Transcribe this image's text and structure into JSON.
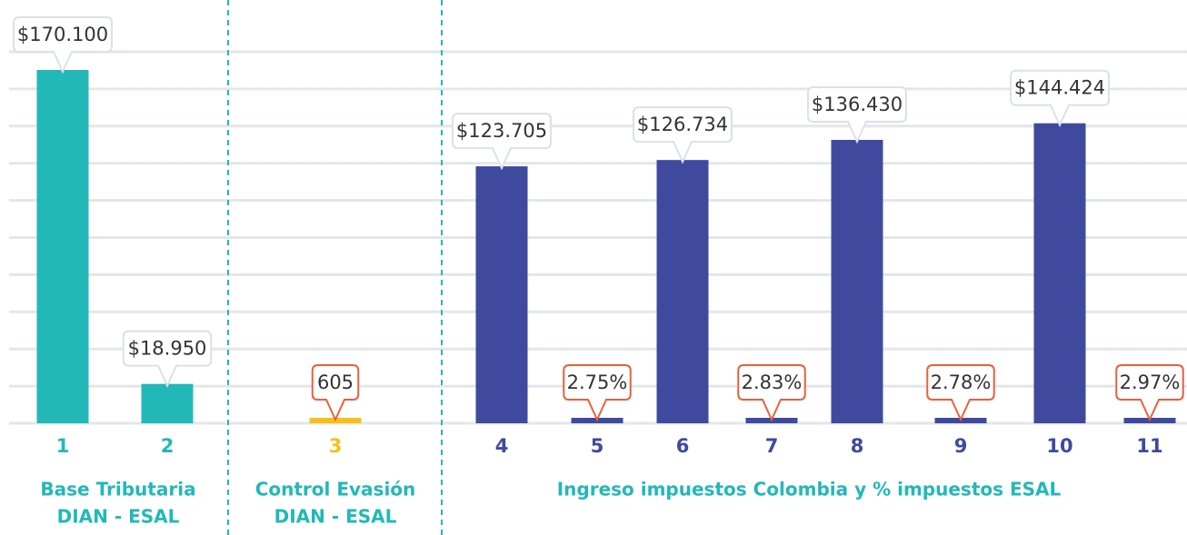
{
  "chart_data": {
    "type": "bar",
    "groups": [
      {
        "label": [
          "Base Tributaria",
          "DIAN - ESAL"
        ],
        "color": "#22b8b8",
        "categories": [
          "1",
          "2"
        ],
        "values": [
          170100,
          18950
        ],
        "value_labels": [
          "$170.100",
          "$18.950"
        ]
      },
      {
        "label": [
          "Control Evasión",
          "DIAN - ESAL"
        ],
        "color": "#f5c01a",
        "categories": [
          "3"
        ],
        "values": [
          605
        ],
        "value_labels": [
          "605"
        ]
      },
      {
        "label": [
          "Ingreso impuestos Colombia y % impuestos ESAL"
        ],
        "color": "#3f4a9e",
        "categories": [
          "4",
          "5",
          "6",
          "7",
          "8",
          "9",
          "10",
          "11"
        ],
        "values": [
          123705,
          2.75,
          126734,
          2.83,
          136430,
          2.78,
          144424,
          2.97
        ],
        "value_labels": [
          "$123.705",
          "2.75%",
          "$126.734",
          "2.83%",
          "$136.430",
          "2.78%",
          "$144.424",
          "2.97%"
        ]
      }
    ]
  }
}
